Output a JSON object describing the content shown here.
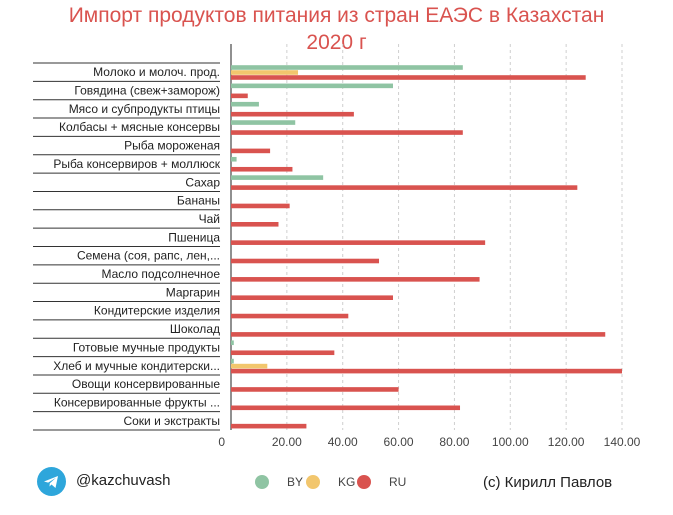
{
  "title_line1": "Импорт продуктов питания из стран ЕАЭС в Казахстан",
  "title_line2": "2020 г",
  "footer": {
    "handle": "@kazchuvash",
    "credit": "(c) Кирилл Павлов",
    "telegram_icon": "telegram-icon"
  },
  "chart_data": {
    "type": "bar",
    "orientation": "horizontal",
    "title": "Импорт продуктов питания из стран ЕАЭС в Казахстан 2020 г",
    "categories": [
      "Молоко и молоч. прод.",
      "Говядина (свеж+заморож)",
      "Мясо и субпродукты птицы",
      "Колбасы + мясные консервы",
      "Рыба мороженая",
      "Рыба консервиров + моллюск",
      "Сахар",
      "Бананы",
      "Чай",
      "Пшеница",
      "Семена (соя, рапс, лен,...",
      "Масло подсолнечное",
      "Маргарин",
      "Кондитерские изделия",
      "Шоколад",
      "Готовые мучные продукты",
      "Хлеб и мучные кондитерски...",
      "Овощи консервированные",
      "Консервированные фрукты ...",
      "Соки и экстракты"
    ],
    "series": [
      {
        "name": "BY",
        "color": "#8fc4a3",
        "values": [
          83,
          58,
          10,
          23,
          0,
          2,
          33,
          0,
          0,
          0,
          0,
          0,
          0,
          0,
          0,
          1,
          1,
          0,
          0,
          0
        ]
      },
      {
        "name": "KG",
        "color": "#f2c66d",
        "values": [
          24,
          0,
          0,
          0,
          0,
          0,
          0,
          0,
          0,
          0,
          0,
          0,
          0,
          0,
          0,
          0,
          13,
          0,
          0,
          0
        ]
      },
      {
        "name": "RU",
        "color": "#d9534f",
        "values": [
          127,
          6,
          44,
          83,
          14,
          22,
          124,
          21,
          17,
          91,
          53,
          89,
          58,
          42,
          134,
          37,
          140,
          60,
          82,
          27
        ]
      }
    ],
    "xlim": [
      0,
      140
    ],
    "xticks": [
      "0",
      "20.00",
      "40.00",
      "60.00",
      "80.00",
      "100.00",
      "120.00",
      "140.00"
    ],
    "grid": "vertical dashed",
    "legend": "bottom"
  }
}
